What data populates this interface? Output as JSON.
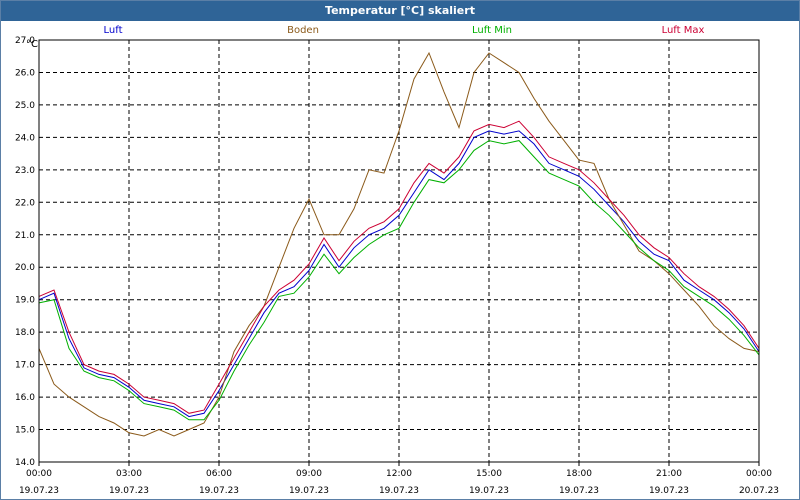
{
  "window": {
    "title": "Temperatur [°C] skaliert"
  },
  "colors": {
    "titlebar": "#2f6497",
    "luft": "#0000cc",
    "boden": "#8b5a1a",
    "luft_min": "#00b000",
    "luft_max": "#cc0033"
  },
  "chart_data": {
    "type": "line",
    "title": "Temperatur [°C] skaliert",
    "ylabel": "°C",
    "xlabel": "",
    "ylim": [
      14.0,
      27.0
    ],
    "xlim_hours": [
      0,
      24
    ],
    "grid": true,
    "legend_placement": "top",
    "y_ticks": [
      "14.0",
      "15.0",
      "16.0",
      "17.0",
      "18.0",
      "19.0",
      "20.0",
      "21.0",
      "22.0",
      "23.0",
      "24.0",
      "25.0",
      "26.0",
      "27.0"
    ],
    "x_ticks": [
      {
        "time": "00:00",
        "date": "19.07.23"
      },
      {
        "time": "03:00",
        "date": "19.07.23"
      },
      {
        "time": "06:00",
        "date": "19.07.23"
      },
      {
        "time": "09:00",
        "date": "19.07.23"
      },
      {
        "time": "12:00",
        "date": "19.07.23"
      },
      {
        "time": "15:00",
        "date": "19.07.23"
      },
      {
        "time": "18:00",
        "date": "19.07.23"
      },
      {
        "time": "21:00",
        "date": "19.07.23"
      },
      {
        "time": "00:00",
        "date": "20.07.23"
      }
    ],
    "x": [
      0,
      0.5,
      1,
      1.5,
      2,
      2.5,
      3,
      3.5,
      4,
      4.5,
      5,
      5.5,
      6,
      6.5,
      7,
      7.5,
      8,
      8.5,
      9,
      9.5,
      10,
      10.5,
      11,
      11.5,
      12,
      12.5,
      13,
      13.5,
      14,
      14.5,
      15,
      15.5,
      16,
      16.5,
      17,
      17.5,
      18,
      18.5,
      19,
      19.5,
      20,
      20.5,
      21,
      21.5,
      22,
      22.5,
      23,
      23.5,
      24
    ],
    "series": [
      {
        "name": "Luft",
        "color_key": "luft",
        "values": [
          19.0,
          19.2,
          17.8,
          16.9,
          16.7,
          16.6,
          16.3,
          15.9,
          15.8,
          15.7,
          15.4,
          15.5,
          16.2,
          17.0,
          17.8,
          18.6,
          19.2,
          19.4,
          19.9,
          20.7,
          20.0,
          20.6,
          21.0,
          21.2,
          21.6,
          22.3,
          23.0,
          22.7,
          23.2,
          24.0,
          24.2,
          24.1,
          24.2,
          23.8,
          23.2,
          23.0,
          22.8,
          22.4,
          21.9,
          21.4,
          20.8,
          20.4,
          20.2,
          19.6,
          19.3,
          19.0,
          18.6,
          18.1,
          17.4
        ]
      },
      {
        "name": "Boden",
        "color_key": "boden",
        "values": [
          17.5,
          16.4,
          16.0,
          15.7,
          15.4,
          15.2,
          14.9,
          14.8,
          15.0,
          14.8,
          15.0,
          15.2,
          16.0,
          17.4,
          18.2,
          18.8,
          20.0,
          21.2,
          22.1,
          21.0,
          21.0,
          21.8,
          23.0,
          22.9,
          24.2,
          25.8,
          26.6,
          25.4,
          24.3,
          26.0,
          26.6,
          26.3,
          26.0,
          25.2,
          24.5,
          23.9,
          23.3,
          23.2,
          22.1,
          21.3,
          20.5,
          20.2,
          19.8,
          19.3,
          18.8,
          18.2,
          17.8,
          17.5,
          17.4
        ]
      },
      {
        "name": "Luft Min",
        "color_key": "luft_min",
        "values": [
          18.9,
          19.0,
          17.5,
          16.8,
          16.6,
          16.5,
          16.2,
          15.8,
          15.7,
          15.6,
          15.3,
          15.3,
          15.9,
          16.8,
          17.6,
          18.3,
          19.1,
          19.2,
          19.7,
          20.4,
          19.8,
          20.3,
          20.7,
          21.0,
          21.2,
          22.0,
          22.7,
          22.6,
          23.0,
          23.6,
          23.9,
          23.8,
          23.9,
          23.4,
          22.9,
          22.7,
          22.5,
          22.0,
          21.6,
          21.1,
          20.6,
          20.2,
          19.9,
          19.4,
          19.1,
          18.8,
          18.4,
          17.9,
          17.3
        ]
      },
      {
        "name": "Luft Max",
        "color_key": "luft_max",
        "values": [
          19.1,
          19.3,
          18.0,
          17.0,
          16.8,
          16.7,
          16.4,
          16.0,
          15.9,
          15.8,
          15.5,
          15.6,
          16.4,
          17.2,
          18.0,
          18.8,
          19.3,
          19.6,
          20.1,
          20.9,
          20.2,
          20.8,
          21.2,
          21.4,
          21.8,
          22.6,
          23.2,
          22.9,
          23.4,
          24.2,
          24.4,
          24.3,
          24.5,
          24.0,
          23.4,
          23.2,
          23.0,
          22.6,
          22.1,
          21.6,
          21.0,
          20.6,
          20.3,
          19.8,
          19.4,
          19.1,
          18.7,
          18.2,
          17.5
        ]
      }
    ]
  }
}
